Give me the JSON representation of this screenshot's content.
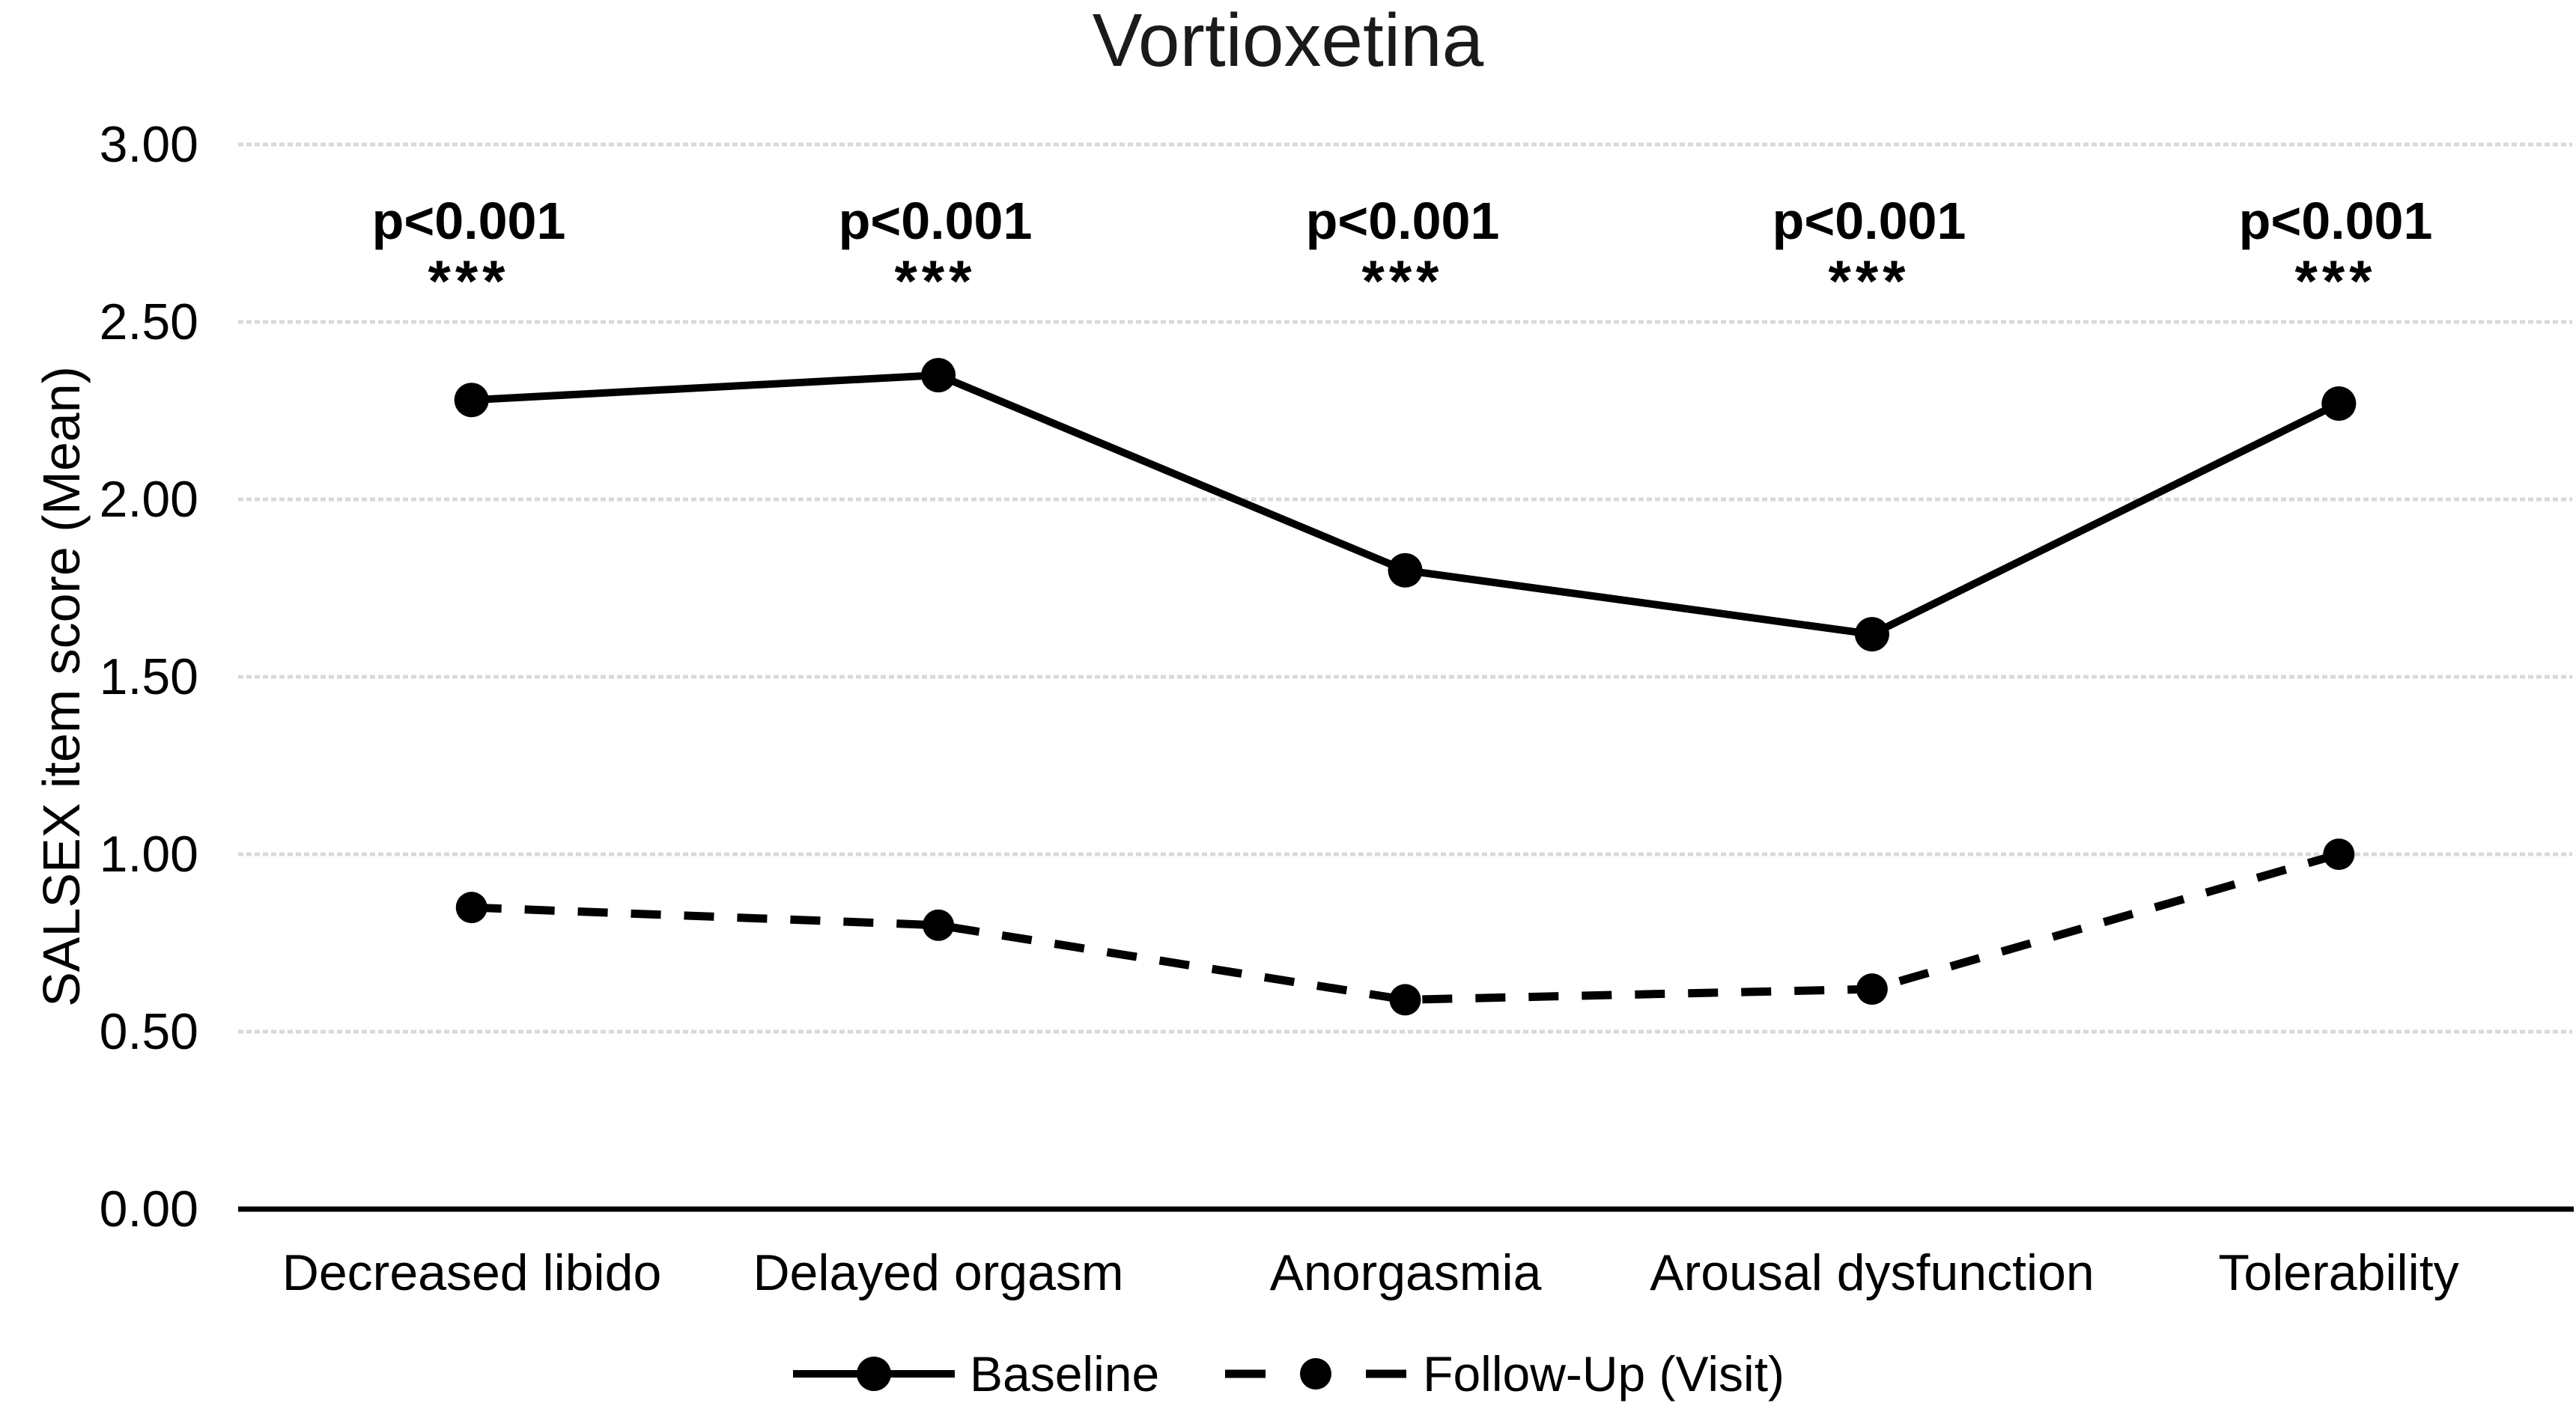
{
  "chart_data": {
    "type": "line",
    "title": "Vortioxetina",
    "ylabel": "SALSEX item score (Mean)",
    "xlabel": "",
    "categories": [
      "Decreased libido",
      "Delayed orgasm",
      "Anorgasmia",
      "Arousal dysfunction",
      "Tolerability"
    ],
    "series": [
      {
        "name": "Baseline",
        "style": "solid",
        "values": [
          2.28,
          2.35,
          1.8,
          1.62,
          2.27
        ]
      },
      {
        "name": "Follow-Up (Visit)",
        "style": "dashed",
        "values": [
          0.85,
          0.8,
          0.59,
          0.62,
          1.0
        ]
      }
    ],
    "annotations": [
      {
        "p": "p<0.001",
        "stars": "***"
      },
      {
        "p": "p<0.001",
        "stars": "***"
      },
      {
        "p": "p<0.001",
        "stars": "***"
      },
      {
        "p": "p<0.001",
        "stars": "***"
      },
      {
        "p": "p<0.001",
        "stars": "***"
      }
    ],
    "y_axis": {
      "min": 0.0,
      "max": 3.0,
      "step": 0.5,
      "tick_labels": [
        "3.00",
        "2.50",
        "2.00",
        "1.50",
        "1.00",
        "0.50",
        "0.00"
      ]
    },
    "grid": true,
    "legend_position": "bottom",
    "colors": {
      "series": "#000000",
      "gridline": "#d9d9d9",
      "axis": "#000000",
      "text": "#000000"
    }
  }
}
